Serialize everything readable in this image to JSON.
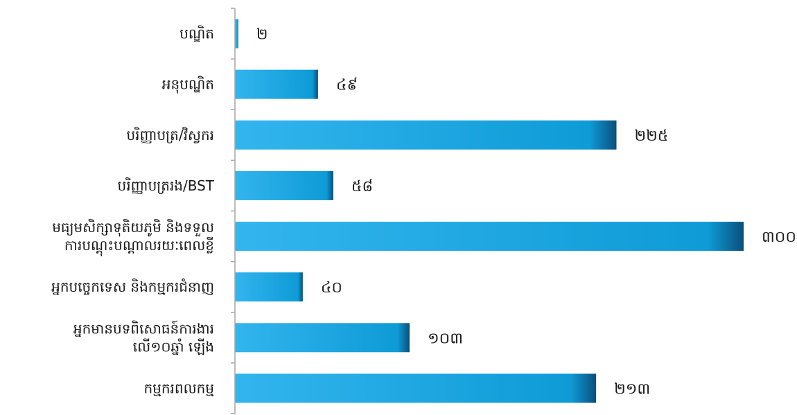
{
  "chart_data": {
    "type": "bar",
    "orientation": "horizontal",
    "title": "",
    "xlabel": "",
    "ylabel": "",
    "categories": [
      [
        "បណ្ឌិត"
      ],
      [
        "អនុបណ្ឌិត"
      ],
      [
        "បរិញ្ញាបត្រ/វិស្វករ"
      ],
      [
        "បរិញ្ញាបត្ររង/BST"
      ],
      [
        "មធ្យមសិក្សាទុតិយភូមិ និងទទួល",
        "ការបណ្ដុះបណ្ដាលរយៈពេលខ្លី"
      ],
      [
        "អ្នកបច្ចេកទេស និងកម្មករជំនាញ"
      ],
      [
        "អ្នកមានបទពិសោធន៍ការងារ",
        "លើ១០ឆ្នាំ ឡើង"
      ],
      [
        "កម្មករពលកម្ម"
      ]
    ],
    "values": [
      2,
      49,
      225,
      58,
      300,
      40,
      103,
      213
    ],
    "value_labels": [
      "២",
      "៤៩",
      "២២៥",
      "៥៨",
      "៣០០",
      "៤០",
      "១០៣",
      "២១៣"
    ],
    "xlim": [
      0,
      300
    ],
    "grid": false,
    "legend": "none",
    "colors": {
      "bar_light": "#33b5ee",
      "bar_main": "#0e9bd6",
      "bar_edge": "#0a4f7c",
      "axis": "#a6a6a6",
      "text": "#1a1a1a"
    }
  }
}
